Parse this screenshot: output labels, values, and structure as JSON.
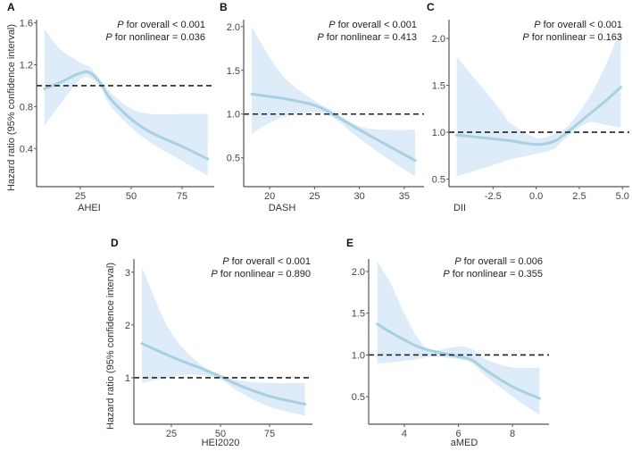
{
  "colors": {
    "band": "#ddecf8",
    "line": "#a9d0e1",
    "axis": "#555555",
    "ref": "#222222"
  },
  "ylabel": "Hazard ratio (95% confidence interval)",
  "chart_data": [
    {
      "type": "line",
      "panel": "A",
      "xlabel": "AHEI",
      "ylabel": "Hazard ratio (95% confidence interval)",
      "annotation": [
        "P for overall < 0.001",
        "P for nonlinear = 0.036"
      ],
      "xlim": [
        3.5,
        90.8
      ],
      "ylim": [
        0.036,
        1.63
      ],
      "xticks": [
        25,
        50,
        75
      ],
      "yticks": [
        0.4,
        0.8,
        1.2,
        1.6
      ],
      "ytick_labels": [
        "0.4",
        "0.8",
        "1.2",
        "1.6"
      ],
      "xtick_labels": [
        "25",
        "50",
        "75"
      ],
      "reference": 1.0,
      "x": [
        7.4,
        15,
        25,
        30,
        35,
        40,
        50,
        60,
        75,
        87.6
      ],
      "hr": [
        0.97,
        1.03,
        1.12,
        1.12,
        1.02,
        0.87,
        0.68,
        0.55,
        0.42,
        0.3
      ],
      "lower": [
        0.62,
        0.82,
        1.06,
        1.07,
        0.98,
        0.8,
        0.6,
        0.45,
        0.28,
        0.14
      ],
      "upper": [
        1.54,
        1.35,
        1.22,
        1.17,
        1.05,
        0.93,
        0.78,
        0.73,
        0.73,
        0.73
      ]
    },
    {
      "type": "line",
      "panel": "B",
      "xlabel": "DASH",
      "ylabel": "",
      "annotation": [
        "P for overall < 0.001",
        "P for nonlinear = 0.413"
      ],
      "xlim": [
        17.1,
        37.2
      ],
      "ylim": [
        0.17,
        2.08
      ],
      "xticks": [
        20,
        25,
        30,
        35
      ],
      "yticks": [
        0.5,
        1.0,
        1.5,
        2.0
      ],
      "ytick_labels": [
        "0.5",
        "1.0",
        "1.5",
        "2.0"
      ],
      "xtick_labels": [
        "20",
        "25",
        "30",
        "35"
      ],
      "reference": 1.0,
      "x": [
        18,
        20,
        22,
        25,
        27,
        30,
        33,
        36.2
      ],
      "hr": [
        1.23,
        1.2,
        1.17,
        1.1,
        1.0,
        0.82,
        0.65,
        0.47
      ],
      "lower": [
        0.78,
        0.9,
        0.98,
        1.02,
        0.96,
        0.72,
        0.5,
        0.29
      ],
      "upper": [
        2.0,
        1.65,
        1.38,
        1.15,
        1.04,
        0.86,
        0.82,
        0.82
      ]
    },
    {
      "type": "line",
      "panel": "C",
      "xlabel": "DII",
      "ylabel": "",
      "annotation": [
        "P for overall < 0.001",
        "P for nonlinear = 0.163"
      ],
      "xlim": [
        -5.05,
        5.4
      ],
      "ylim": [
        0.42,
        2.2
      ],
      "xticks": [
        -2.5,
        0,
        2.5,
        5
      ],
      "yticks": [
        0.5,
        1.0,
        1.5,
        2.0
      ],
      "ytick_labels": [
        "0.5",
        "1.0",
        "1.5",
        "2.0"
      ],
      "xtick_labels": [
        "-2.5",
        "0.0",
        "2.5",
        "5.0"
      ],
      "reference": 1.0,
      "x": [
        -4.6,
        -3,
        -2,
        -1.5,
        0,
        1,
        1.8,
        3,
        4,
        4.9
      ],
      "hr": [
        0.97,
        0.94,
        0.92,
        0.91,
        0.87,
        0.9,
        1.0,
        1.18,
        1.33,
        1.48
      ],
      "lower": [
        0.53,
        0.62,
        0.68,
        0.71,
        0.77,
        0.82,
        0.95,
        1.1,
        1.08,
        1.05
      ],
      "upper": [
        1.8,
        1.45,
        1.22,
        1.1,
        0.94,
        0.98,
        1.06,
        1.35,
        1.7,
        2.1
      ]
    },
    {
      "type": "line",
      "panel": "D",
      "xlabel": "HEI2020",
      "ylabel": "Hazard ratio (95% confidence interval)",
      "annotation": [
        "P for overall < 0.001",
        "P for nonlinear = 0.890"
      ],
      "xlim": [
        5.9,
        96.8
      ],
      "ylim": [
        0.12,
        3.25
      ],
      "xticks": [
        25,
        50,
        75
      ],
      "yticks": [
        1,
        2,
        3
      ],
      "ytick_labels": [
        "1",
        "2",
        "3"
      ],
      "xtick_labels": [
        "25",
        "50",
        "75"
      ],
      "reference": 1.0,
      "x": [
        10,
        20,
        25,
        30,
        40,
        50,
        60,
        75,
        93
      ],
      "hr": [
        1.65,
        1.48,
        1.4,
        1.32,
        1.18,
        1.02,
        0.85,
        0.65,
        0.5
      ],
      "lower": [
        0.9,
        0.98,
        1.01,
        1.05,
        1.05,
        0.97,
        0.72,
        0.45,
        0.28
      ],
      "upper": [
        3.1,
        2.2,
        1.85,
        1.6,
        1.25,
        1.06,
        0.95,
        0.9,
        0.9
      ]
    },
    {
      "type": "line",
      "panel": "E",
      "xlabel": "aMED",
      "ylabel": "",
      "annotation": [
        "P for overall = 0.006",
        "P for nonlinear = 0.355"
      ],
      "xlim": [
        2.68,
        9.35
      ],
      "ylim": [
        0.17,
        2.15
      ],
      "xticks": [
        4,
        6,
        8
      ],
      "yticks": [
        0.5,
        1.0,
        1.5,
        2.0
      ],
      "ytick_labels": [
        "0.5",
        "1.0",
        "1.5",
        "2.0"
      ],
      "xtick_labels": [
        "4",
        "6",
        "8"
      ],
      "reference": 1.0,
      "x": [
        3,
        3.5,
        4,
        4.5,
        5,
        6,
        6.5,
        7,
        8,
        9
      ],
      "hr": [
        1.37,
        1.27,
        1.18,
        1.1,
        1.05,
        0.98,
        0.94,
        0.82,
        0.62,
        0.48
      ],
      "lower": [
        0.9,
        0.91,
        0.93,
        0.95,
        0.98,
        0.95,
        0.9,
        0.75,
        0.5,
        0.28
      ],
      "upper": [
        2.12,
        1.85,
        1.5,
        1.2,
        1.06,
        1.1,
        1.07,
        0.95,
        0.85,
        0.85
      ]
    }
  ]
}
